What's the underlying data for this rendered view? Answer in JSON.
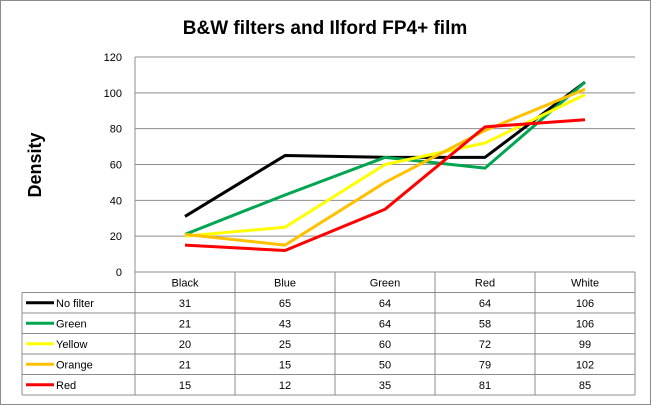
{
  "chart_data": {
    "type": "line",
    "title": "B&W filters and Ilford FP4+ film",
    "xlabel": "",
    "ylabel": "Density",
    "categories": [
      "Black",
      "Blue",
      "Green",
      "Red",
      "White"
    ],
    "ylim": [
      0,
      120
    ],
    "yticks": [
      "0",
      "20",
      "40",
      "60",
      "80",
      "100",
      "120"
    ],
    "grid": true,
    "legend": "data-table",
    "series": [
      {
        "name": "No filter",
        "color": "#000000",
        "values": [
          31,
          65,
          64,
          64,
          106
        ]
      },
      {
        "name": "Green",
        "color": "#00a550",
        "values": [
          21,
          43,
          64,
          58,
          106
        ]
      },
      {
        "name": "Yellow",
        "color": "#ffff00",
        "values": [
          20,
          25,
          60,
          72,
          99
        ]
      },
      {
        "name": "Orange",
        "color": "#ffc000",
        "values": [
          21,
          15,
          50,
          79,
          102
        ]
      },
      {
        "name": "Red",
        "color": "#ff0000",
        "values": [
          15,
          12,
          35,
          81,
          85
        ]
      }
    ]
  }
}
